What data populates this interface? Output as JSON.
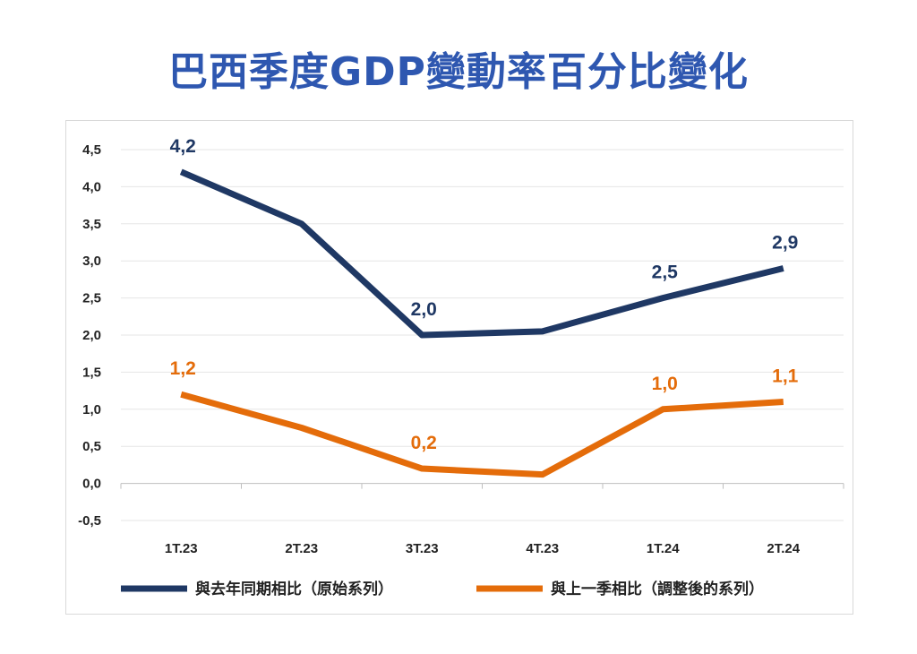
{
  "title": "巴西季度GDP變動率百分比變化",
  "chart_data": {
    "type": "line",
    "categories": [
      "1T.23",
      "2T.23",
      "3T.23",
      "4T.23",
      "1T.24",
      "2T.24"
    ],
    "ylim": [
      -0.5,
      4.5
    ],
    "yticks": [
      "-0,5",
      "0,0",
      "0,5",
      "1,0",
      "1,5",
      "2,0",
      "2,5",
      "3,0",
      "3,5",
      "4,0",
      "4,5"
    ],
    "grid": true,
    "legend_position": "bottom",
    "series": [
      {
        "name": "與去年同期相比（原始系列）",
        "color": "#1f3864",
        "values": [
          4.2,
          3.5,
          2.0,
          2.05,
          2.5,
          2.9
        ],
        "labels": [
          "4,2",
          "",
          "2,0",
          "",
          "2,5",
          "2,9"
        ]
      },
      {
        "name": "與上一季相比（調整後的系列）",
        "color": "#e46c0a",
        "values": [
          1.2,
          0.75,
          0.2,
          0.12,
          1.0,
          1.1
        ],
        "labels": [
          "1,2",
          "",
          "0,2",
          "",
          "1,0",
          "1,1"
        ]
      }
    ]
  }
}
